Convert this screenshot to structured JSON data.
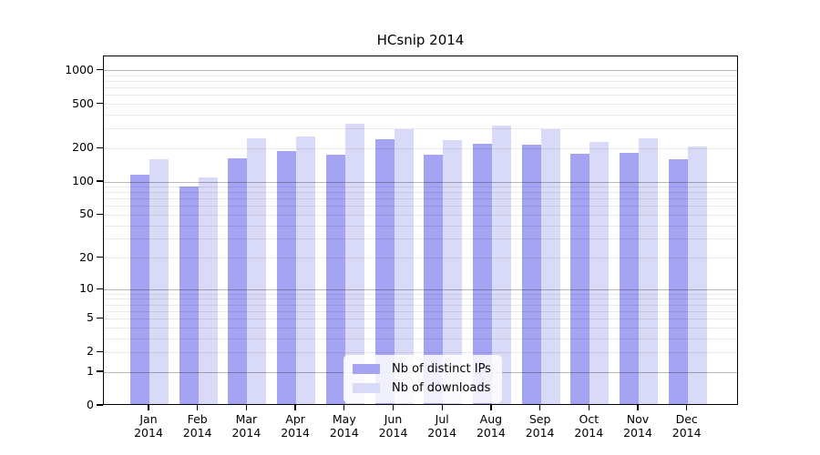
{
  "chart_data": {
    "type": "bar",
    "title": "HCsnip 2014",
    "xlabel": "",
    "ylabel": "",
    "year": "2014",
    "categories": [
      "Jan",
      "Feb",
      "Mar",
      "Apr",
      "May",
      "Jun",
      "Jul",
      "Aug",
      "Sep",
      "Oct",
      "Nov",
      "Dec"
    ],
    "series": [
      {
        "name": "Nb of distinct IPs",
        "color": "#a4a4f2",
        "values": [
          112,
          88,
          157,
          182,
          170,
          233,
          170,
          213,
          210,
          172,
          178,
          156
        ]
      },
      {
        "name": "Nb of downloads",
        "color": "#d9d9f8",
        "values": [
          155,
          106,
          240,
          250,
          325,
          290,
          228,
          310,
          288,
          220,
          238,
          203
        ]
      }
    ],
    "y_axis": {
      "scale": "symlog (log1p)",
      "ticks": [
        1000,
        500,
        200,
        100,
        50,
        20,
        10,
        5,
        2,
        1,
        0
      ],
      "range": [
        0,
        1350
      ]
    },
    "grid": {
      "major_gridlines": [
        1,
        10,
        100,
        1000
      ],
      "minor_gridlines": "2-9 per decade",
      "major_color": "#b8b8b8",
      "minor_color": "#e9e9e9"
    },
    "legend": {
      "position": "inside plot, lower center",
      "entries": [
        "Nb of distinct IPs",
        "Nb of downloads"
      ]
    }
  }
}
